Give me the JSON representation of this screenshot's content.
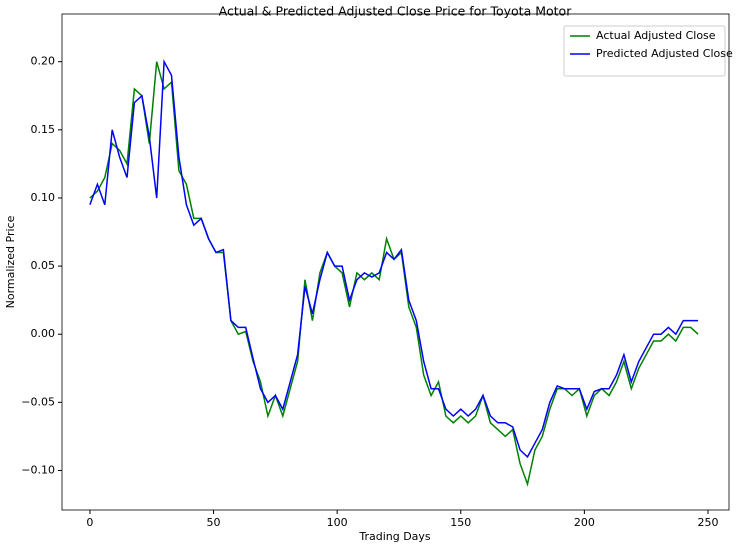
{
  "chart_data": {
    "type": "line",
    "title": "Actual & Predicted Adjusted Close Price for Toyota Motor",
    "xlabel": "Trading Days",
    "ylabel": "Normalized Price",
    "x": [
      0,
      3,
      6,
      9,
      12,
      15,
      18,
      21,
      24,
      27,
      30,
      33,
      36,
      39,
      42,
      45,
      48,
      51,
      54,
      57,
      60,
      63,
      66,
      69,
      72,
      75,
      78,
      81,
      84,
      87,
      90,
      93,
      96,
      99,
      102,
      105,
      108,
      111,
      114,
      117,
      120,
      123,
      126,
      129,
      132,
      135,
      138,
      141,
      144,
      147,
      150,
      153,
      156,
      159,
      162,
      165,
      168,
      171,
      174,
      177,
      180,
      183,
      186,
      189,
      192,
      195,
      198,
      201,
      204,
      207,
      210,
      213,
      216,
      219,
      222,
      225,
      228,
      231,
      234,
      237,
      240,
      243,
      246
    ],
    "series": [
      {
        "name": "Actual Adjusted Close",
        "color": "#008000",
        "values": [
          0.1,
          0.105,
          0.115,
          0.14,
          0.135,
          0.125,
          0.18,
          0.175,
          0.14,
          0.2,
          0.18,
          0.185,
          0.12,
          0.11,
          0.085,
          0.085,
          0.07,
          0.06,
          0.06,
          0.01,
          0.0,
          0.002,
          -0.02,
          -0.035,
          -0.06,
          -0.045,
          -0.06,
          -0.04,
          -0.02,
          0.04,
          0.01,
          0.045,
          0.06,
          0.05,
          0.045,
          0.02,
          0.045,
          0.04,
          0.045,
          0.04,
          0.07,
          0.055,
          0.06,
          0.02,
          0.005,
          -0.03,
          -0.045,
          -0.035,
          -0.06,
          -0.065,
          -0.06,
          -0.065,
          -0.06,
          -0.045,
          -0.065,
          -0.07,
          -0.075,
          -0.07,
          -0.095,
          -0.11,
          -0.085,
          -0.075,
          -0.055,
          -0.04,
          -0.04,
          -0.045,
          -0.04,
          -0.06,
          -0.045,
          -0.04,
          -0.045,
          -0.035,
          -0.02,
          -0.04,
          -0.025,
          -0.015,
          -0.005,
          -0.005,
          0.0,
          -0.005,
          0.005,
          0.005,
          0.0
        ]
      },
      {
        "name": "Predicted Adjusted Close",
        "color": "#0000ff",
        "values": [
          0.095,
          0.11,
          0.095,
          0.15,
          0.13,
          0.115,
          0.17,
          0.175,
          0.145,
          0.1,
          0.2,
          0.19,
          0.13,
          0.095,
          0.08,
          0.085,
          0.07,
          0.06,
          0.062,
          0.01,
          0.005,
          0.005,
          -0.018,
          -0.04,
          -0.05,
          -0.045,
          -0.055,
          -0.035,
          -0.015,
          0.035,
          0.015,
          0.04,
          0.06,
          0.05,
          0.05,
          0.025,
          0.04,
          0.045,
          0.042,
          0.045,
          0.06,
          0.055,
          0.062,
          0.025,
          0.01,
          -0.02,
          -0.04,
          -0.04,
          -0.055,
          -0.06,
          -0.055,
          -0.06,
          -0.055,
          -0.045,
          -0.06,
          -0.065,
          -0.065,
          -0.068,
          -0.085,
          -0.09,
          -0.08,
          -0.07,
          -0.05,
          -0.038,
          -0.04,
          -0.04,
          -0.04,
          -0.055,
          -0.042,
          -0.04,
          -0.04,
          -0.03,
          -0.015,
          -0.035,
          -0.02,
          -0.01,
          0.0,
          0.0,
          0.005,
          0.0,
          0.01,
          0.01,
          0.01
        ]
      }
    ],
    "xlim": [
      -11.3,
      258.5
    ],
    "xticks": [
      0,
      50,
      100,
      150,
      200,
      250
    ],
    "ylim": [
      -0.129,
      0.235
    ],
    "yticks": [
      {
        "value": -0.1,
        "label": "−0.10"
      },
      {
        "value": -0.05,
        "label": "−0.05"
      },
      {
        "value": 0,
        "label": "0.00"
      },
      {
        "value": 0.05,
        "label": "0.05"
      },
      {
        "value": 0.1,
        "label": "0.10"
      },
      {
        "value": 0.15,
        "label": "0.15"
      },
      {
        "value": 0.2,
        "label": "0.20"
      }
    ],
    "legend": "upper right",
    "grid": false
  }
}
